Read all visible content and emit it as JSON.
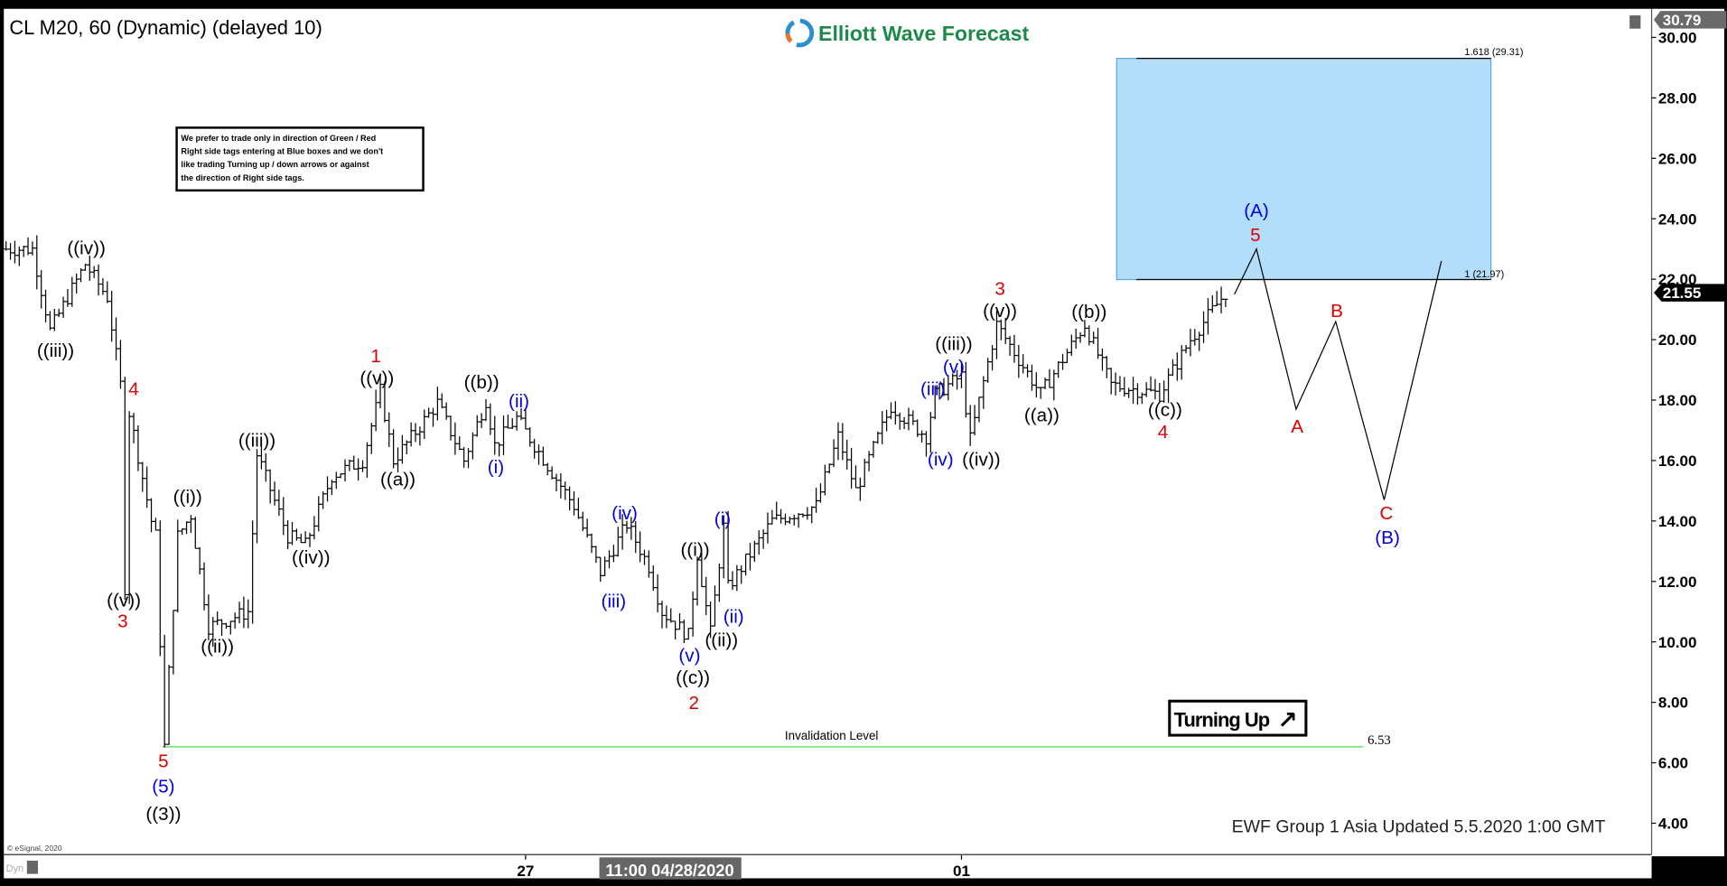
{
  "header": {
    "symbol_title": "CL M20, 60 (Dynamic) (delayed 10)",
    "logo_text": "Elliott Wave Forecast",
    "last_price_top": "30.79"
  },
  "notice": {
    "lines": [
      "We prefer to trade only in direction of Green / Red",
      "Right side tags entering at Blue boxes and we don't",
      "like trading Turning up / down arrows or against",
      "the direction of Right side tags."
    ]
  },
  "turning_up": {
    "label": "Turning Up",
    "arrow": "↗"
  },
  "footer": {
    "updated": "EWF Group 1 Asia Updated 5.5.2020 1:00 GMT",
    "copyright": "© eSignal, 2020",
    "dyn_label": "Dyn",
    "time_labels": [
      "27",
      "01"
    ],
    "cursor_time": "11:00 04/28/2020"
  },
  "colors": {
    "red": "#e00000",
    "blue": "#0000e0",
    "black": "#000000",
    "box": "#b3defa",
    "invalid": "#66e066"
  },
  "chart_data": {
    "type": "ohlc",
    "title": "CL M20, 60 (Dynamic) (delayed 10)",
    "ylim": [
      3,
      30.79
    ],
    "y_ticks": [
      "30.00",
      "28.00",
      "26.00",
      "24.00",
      "22.00",
      "20.00",
      "18.00",
      "16.00",
      "14.00",
      "12.00",
      "10.00",
      "8.00",
      "6.00",
      "4.00"
    ],
    "last_price": "21.55",
    "price_path": [
      [
        0,
        23.0
      ],
      [
        6,
        23.0
      ],
      [
        10,
        20.3
      ],
      [
        18,
        22.5
      ],
      [
        23,
        21.4
      ],
      [
        26,
        18.5
      ],
      [
        27,
        11.8
      ],
      [
        28,
        17.6
      ],
      [
        33,
        14
      ],
      [
        34,
        13.5
      ],
      [
        36,
        6.53
      ],
      [
        37,
        9
      ],
      [
        39,
        13.5
      ],
      [
        42,
        14.2
      ],
      [
        46,
        10.5
      ],
      [
        55,
        11
      ],
      [
        57,
        16.2
      ],
      [
        64,
        13.5
      ],
      [
        68,
        13.2
      ],
      [
        74,
        15.5
      ],
      [
        81,
        16
      ],
      [
        85,
        18.3
      ],
      [
        88,
        16
      ],
      [
        98,
        17.9
      ],
      [
        104,
        16
      ],
      [
        109,
        18
      ],
      [
        111,
        16.5
      ],
      [
        116,
        17.4
      ],
      [
        129,
        14.5
      ],
      [
        135,
        12.3
      ],
      [
        141,
        13.9
      ],
      [
        146,
        12.5
      ],
      [
        149,
        11.0
      ],
      [
        155,
        10.2
      ],
      [
        157,
        12.9
      ],
      [
        160,
        10.3
      ],
      [
        163,
        13.8
      ],
      [
        164,
        11.8
      ],
      [
        174,
        14
      ],
      [
        184,
        14.5
      ],
      [
        189,
        16.8
      ],
      [
        193,
        15
      ],
      [
        201,
        17.8
      ],
      [
        209,
        16.8
      ],
      [
        211,
        18.2
      ],
      [
        217,
        18.8
      ],
      [
        219,
        16.7
      ],
      [
        225,
        20.5
      ],
      [
        235,
        18.2
      ],
      [
        245,
        20.5
      ],
      [
        251,
        18.5
      ],
      [
        262,
        18.2
      ],
      [
        269,
        20
      ],
      [
        277,
        21.55
      ]
    ],
    "projection_path": [
      [
        279,
        21.5
      ],
      [
        284,
        23.0
      ],
      [
        293,
        17.7
      ],
      [
        302,
        20.6
      ],
      [
        313,
        14.7
      ],
      [
        326,
        22.6
      ]
    ],
    "target_box": {
      "top": 29.31,
      "bottom": 21.97,
      "labels": [
        "1.618 (29.31)",
        "1 (21.97)"
      ]
    },
    "invalidation": {
      "value": 6.53,
      "label": "Invalidation Level",
      "value_label": "6.53"
    },
    "wave_labels": [
      {
        "text": "((iv))",
        "color": "black"
      },
      {
        "text": "((iii))",
        "color": "black"
      },
      {
        "text": "4",
        "color": "red"
      },
      {
        "text": "((v))",
        "color": "black"
      },
      {
        "text": "3",
        "color": "red"
      },
      {
        "text": "5",
        "color": "red"
      },
      {
        "text": "(5)",
        "color": "blue"
      },
      {
        "text": "((3))",
        "color": "black"
      },
      {
        "text": "((i))",
        "color": "black"
      },
      {
        "text": "((ii))",
        "color": "black"
      },
      {
        "text": "((iii))",
        "color": "black"
      },
      {
        "text": "((iv))",
        "color": "black"
      },
      {
        "text": "1",
        "color": "red"
      },
      {
        "text": "((v))",
        "color": "black"
      },
      {
        "text": "((a))",
        "color": "black"
      },
      {
        "text": "((b))",
        "color": "black"
      },
      {
        "text": "(ii)",
        "color": "blue"
      },
      {
        "text": "(i)",
        "color": "blue"
      },
      {
        "text": "(iv)",
        "color": "blue"
      },
      {
        "text": "(iii)",
        "color": "blue"
      },
      {
        "text": "((i))",
        "color": "black"
      },
      {
        "text": "(i)",
        "color": "blue"
      },
      {
        "text": "(ii)",
        "color": "blue"
      },
      {
        "text": "((ii))",
        "color": "black"
      },
      {
        "text": "(v)",
        "color": "blue"
      },
      {
        "text": "((c))",
        "color": "black"
      },
      {
        "text": "2",
        "color": "red"
      },
      {
        "text": "(iii)",
        "color": "blue"
      },
      {
        "text": "(v)",
        "color": "blue"
      },
      {
        "text": "((iii))",
        "color": "black"
      },
      {
        "text": "(iv)",
        "color": "blue"
      },
      {
        "text": "((iv))",
        "color": "black"
      },
      {
        "text": "3",
        "color": "red"
      },
      {
        "text": "((v))",
        "color": "black"
      },
      {
        "text": "((a))",
        "color": "black"
      },
      {
        "text": "((b))",
        "color": "black"
      },
      {
        "text": "((c))",
        "color": "black"
      },
      {
        "text": "4",
        "color": "red"
      },
      {
        "text": "(A)",
        "color": "blue"
      },
      {
        "text": "5",
        "color": "red"
      },
      {
        "text": "B",
        "color": "red"
      },
      {
        "text": "A",
        "color": "red"
      },
      {
        "text": "C",
        "color": "red"
      },
      {
        "text": "(B)",
        "color": "blue"
      }
    ]
  }
}
